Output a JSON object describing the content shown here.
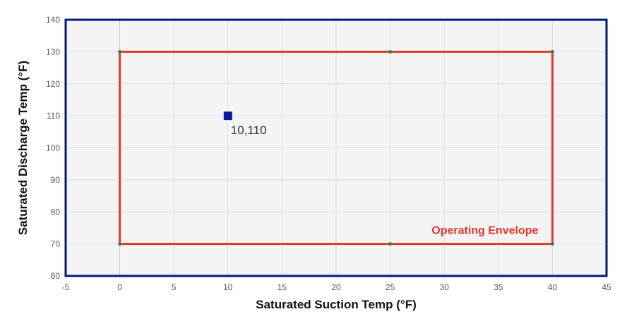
{
  "chart_data": {
    "type": "scatter",
    "xlabel": "Saturated Suction Temp (°F)",
    "ylabel": "Saturated Discharge Temp (°F)",
    "xlim": [
      -5,
      45
    ],
    "ylim": [
      60,
      140
    ],
    "x_ticks": [
      -5,
      0,
      5,
      10,
      15,
      20,
      25,
      30,
      35,
      40,
      45
    ],
    "y_ticks": [
      60,
      70,
      80,
      90,
      100,
      110,
      120,
      130,
      140
    ],
    "grid": true,
    "envelope": {
      "label": "Operating Envelope",
      "points": [
        [
          0,
          70
        ],
        [
          0,
          130
        ],
        [
          25,
          130
        ],
        [
          40,
          130
        ],
        [
          40,
          70
        ],
        [
          25,
          70
        ]
      ]
    },
    "operating_point": {
      "x": 10,
      "y": 110,
      "label": "10,110"
    }
  },
  "colors": {
    "plot_background": "#f4f4f4",
    "plot_border": "#001a80",
    "grid": "#dddddd",
    "envelope_line": "#e0392b",
    "envelope_vertex": "#2e8b3d",
    "envelope_label": "#e0392b",
    "operating_point": "#0a1a9c"
  }
}
